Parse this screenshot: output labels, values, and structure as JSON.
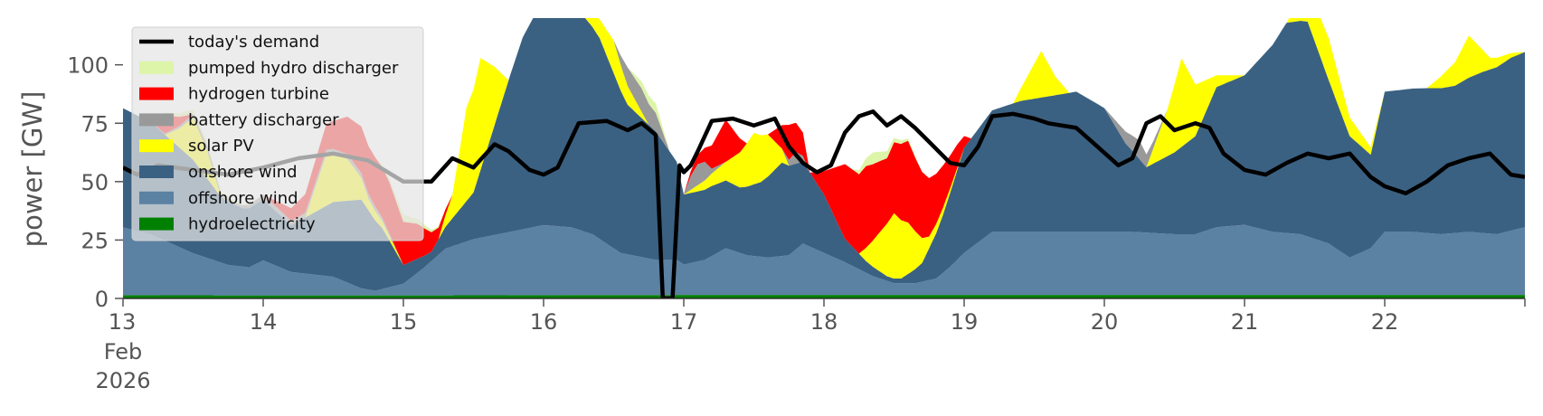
{
  "chart_data": {
    "type": "area",
    "title": "",
    "xlabel": "",
    "ylabel": "power [GW]",
    "xlim": [
      13,
      23
    ],
    "ylim": [
      0,
      120
    ],
    "yticks": [
      0,
      25,
      50,
      75,
      100
    ],
    "ytick_labels": [
      "0",
      "25",
      "50",
      "75",
      "100"
    ],
    "xticks": [
      13,
      14,
      15,
      16,
      17,
      18,
      19,
      20,
      21,
      22
    ],
    "xtick_labels": [
      "13",
      "14",
      "15",
      "16",
      "17",
      "18",
      "19",
      "20",
      "21",
      "22"
    ],
    "xtick_sublabels": [
      "Feb",
      "2026"
    ],
    "grid": false,
    "legend_position": "top-left",
    "stack_order": [
      "hydroelectricity",
      "offshore_wind",
      "onshore_wind",
      "solar_pv",
      "battery_discharger",
      "hydrogen_turbine",
      "pumped_hydro"
    ],
    "series": [
      {
        "key": "demand",
        "name": "today's demand",
        "kind": "line",
        "color": "#000000",
        "x": [
          13.0,
          13.1,
          13.25,
          13.5,
          13.75,
          14.0,
          14.25,
          14.5,
          14.75,
          15.0,
          15.2,
          15.35,
          15.5,
          15.65,
          15.75,
          15.9,
          16.0,
          16.1,
          16.25,
          16.45,
          16.6,
          16.7,
          16.8,
          16.85,
          16.88,
          16.92,
          16.97,
          17.0,
          17.05,
          17.1,
          17.2,
          17.35,
          17.5,
          17.65,
          17.75,
          17.85,
          17.95,
          18.05,
          18.15,
          18.25,
          18.35,
          18.45,
          18.55,
          18.65,
          18.75,
          18.9,
          19.0,
          19.1,
          19.2,
          19.35,
          19.5,
          19.6,
          19.8,
          19.95,
          20.1,
          20.2,
          20.3,
          20.4,
          20.5,
          20.65,
          20.75,
          20.85,
          21.0,
          21.15,
          21.3,
          21.45,
          21.6,
          21.75,
          21.9,
          22.0,
          22.15,
          22.3,
          22.45,
          22.6,
          22.75,
          22.9,
          23.0
        ],
        "values": [
          56,
          53,
          57,
          55,
          53,
          56,
          60,
          62,
          59,
          50,
          50,
          60,
          56,
          66,
          63,
          55,
          53,
          56,
          75,
          76,
          72,
          75,
          70,
          0,
          0,
          0,
          57,
          54,
          57,
          63,
          76,
          77,
          74,
          77,
          65,
          58,
          54,
          57,
          71,
          78,
          80,
          74,
          78,
          73,
          67,
          58,
          57,
          65,
          78,
          79,
          77,
          75,
          73,
          65,
          57,
          60,
          75,
          78,
          72,
          75,
          73,
          62,
          55,
          53,
          58,
          62,
          60,
          62,
          52,
          48,
          45,
          50,
          57,
          60,
          62,
          53,
          52
        ]
      },
      {
        "key": "pumped_hydro",
        "name": "pumped hydro discharger",
        "kind": "area",
        "color": "#ddf5a8",
        "x": [
          13.0,
          13.2,
          13.3,
          13.5,
          13.7,
          14.0,
          14.5,
          14.8,
          15.0,
          15.3,
          16.0,
          16.5,
          16.6,
          16.7,
          16.8,
          16.9,
          17.0,
          18.0,
          18.2,
          18.35,
          18.5,
          18.7,
          19.0,
          23.0
        ],
        "values": [
          0,
          0,
          1,
          2,
          1,
          0,
          0,
          0,
          3,
          0,
          0,
          0,
          0,
          3,
          4,
          0,
          0,
          0,
          0,
          5,
          2,
          0,
          0,
          0
        ]
      },
      {
        "key": "hydrogen_turbine",
        "name": "hydrogen turbine",
        "kind": "area",
        "color": "#ff0000",
        "x": [
          13.0,
          13.2,
          13.3,
          13.5,
          13.7,
          14.0,
          14.3,
          14.5,
          14.7,
          14.9,
          15.1,
          15.25,
          15.35,
          15.5,
          16.0,
          17.0,
          17.15,
          17.3,
          17.45,
          17.6,
          17.75,
          17.85,
          17.9,
          18.0,
          18.15,
          18.3,
          18.45,
          18.6,
          18.75,
          18.85,
          18.95,
          19.05,
          19.2,
          23.0
        ],
        "values": [
          0,
          0,
          8,
          0,
          0,
          0,
          8,
          12,
          20,
          22,
          15,
          5,
          0,
          0,
          0,
          0,
          6,
          18,
          0,
          0,
          15,
          10,
          0,
          10,
          32,
          35,
          28,
          35,
          25,
          18,
          10,
          0,
          0,
          0
        ]
      },
      {
        "key": "battery_discharger",
        "name": "battery discharger",
        "kind": "area",
        "color": "#999999",
        "x": [
          13.0,
          13.2,
          13.4,
          13.6,
          13.8,
          14.0,
          14.3,
          14.5,
          14.8,
          15.0,
          15.5,
          16.0,
          16.5,
          16.6,
          16.7,
          16.8,
          16.9,
          17.0,
          17.05,
          17.1,
          17.15,
          17.2,
          17.3,
          17.5,
          17.7,
          17.8,
          17.9,
          18.0,
          19.0,
          20.0,
          20.15,
          20.25,
          20.35,
          20.45,
          21.0,
          23.0
        ],
        "values": [
          0,
          0,
          1,
          2,
          1,
          2,
          2,
          2,
          2,
          0,
          0,
          0,
          0,
          8,
          10,
          8,
          0,
          0,
          6,
          9,
          8,
          2,
          0,
          0,
          0,
          5,
          0,
          0,
          0,
          0,
          5,
          8,
          3,
          0,
          0,
          0
        ]
      },
      {
        "key": "solar_pv",
        "name": "solar PV",
        "kind": "area",
        "color": "#ffff00",
        "x": [
          13.0,
          13.3,
          13.4,
          13.5,
          13.6,
          13.7,
          14.0,
          14.3,
          14.45,
          14.6,
          14.75,
          15.0,
          15.25,
          15.35,
          15.45,
          15.55,
          15.65,
          15.75,
          16.0,
          16.2,
          16.4,
          16.5,
          16.6,
          16.75,
          17.0,
          17.3,
          17.4,
          17.5,
          17.6,
          17.75,
          18.0,
          18.25,
          18.4,
          18.5,
          18.6,
          18.75,
          19.0,
          19.35,
          19.45,
          19.55,
          19.65,
          19.75,
          20.0,
          20.3,
          20.45,
          20.55,
          20.65,
          20.8,
          21.0,
          21.3,
          21.45,
          21.6,
          21.75,
          22.0,
          22.3,
          22.5,
          22.6,
          22.75,
          23.0
        ],
        "values": [
          0,
          0,
          8,
          18,
          12,
          0,
          0,
          0,
          22,
          18,
          5,
          0,
          0,
          10,
          40,
          48,
          25,
          0,
          0,
          0,
          8,
          14,
          8,
          0,
          0,
          8,
          15,
          22,
          18,
          0,
          0,
          0,
          17,
          28,
          22,
          5,
          0,
          0,
          10,
          20,
          8,
          0,
          0,
          0,
          20,
          38,
          22,
          5,
          0,
          0,
          15,
          18,
          8,
          0,
          0,
          10,
          18,
          5,
          0
        ]
      },
      {
        "key": "onshore_wind",
        "name": "onshore wind",
        "kind": "area",
        "color": "#3b6182",
        "x": [
          13.0,
          13.2,
          13.5,
          13.7,
          13.85,
          14.0,
          14.2,
          14.5,
          14.7,
          14.85,
          15.0,
          15.2,
          15.5,
          15.75,
          15.85,
          15.95,
          16.1,
          16.25,
          16.4,
          16.6,
          16.8,
          16.95,
          17.0,
          17.2,
          17.4,
          17.55,
          17.7,
          17.85,
          18.0,
          18.15,
          18.3,
          18.45,
          18.55,
          18.7,
          18.85,
          19.0,
          19.2,
          19.4,
          19.6,
          19.8,
          20.0,
          20.15,
          20.3,
          20.5,
          20.65,
          20.8,
          21.0,
          21.2,
          21.3,
          21.45,
          21.6,
          21.75,
          21.9,
          22.0,
          22.3,
          22.5,
          22.7,
          22.9,
          23.0
        ],
        "values": [
          51,
          48,
          40,
          28,
          25,
          26,
          20,
          32,
          38,
          26,
          8,
          4,
          20,
          65,
          82,
          92,
          98,
          94,
          86,
          64,
          55,
          42,
          30,
          30,
          28,
          32,
          40,
          35,
          25,
          10,
          5,
          2,
          2,
          8,
          25,
          45,
          52,
          56,
          58,
          60,
          53,
          38,
          28,
          35,
          42,
          60,
          64,
          80,
          90,
          92,
          70,
          52,
          40,
          60,
          62,
          63,
          69,
          74,
          75
        ]
      },
      {
        "key": "offshore_wind",
        "name": "offshore wind",
        "kind": "area",
        "color": "#5b81a3",
        "x": [
          13.0,
          13.2,
          13.5,
          13.75,
          13.9,
          14.0,
          14.2,
          14.5,
          14.7,
          14.8,
          15.0,
          15.15,
          15.3,
          15.5,
          15.75,
          16.0,
          16.2,
          16.35,
          16.55,
          16.8,
          16.95,
          17.0,
          17.15,
          17.3,
          17.45,
          17.6,
          17.75,
          17.85,
          18.0,
          18.15,
          18.35,
          18.5,
          18.65,
          18.8,
          18.9,
          19.0,
          19.2,
          19.5,
          19.8,
          20.0,
          20.2,
          20.5,
          20.65,
          20.8,
          21.0,
          21.2,
          21.4,
          21.6,
          21.75,
          21.9,
          22.0,
          22.2,
          22.4,
          22.6,
          22.8,
          23.0
        ],
        "values": [
          29,
          26,
          18,
          13,
          12,
          15,
          10,
          8,
          3,
          2,
          5,
          12,
          20,
          24,
          27,
          30,
          29,
          26,
          18,
          15,
          15,
          13,
          15,
          20,
          17,
          16,
          17,
          22,
          18,
          14,
          8,
          5,
          5,
          7,
          12,
          18,
          27,
          27,
          27,
          27,
          27,
          26,
          26,
          29,
          30,
          27,
          26,
          22,
          16,
          20,
          27,
          27,
          26,
          27,
          26,
          29
        ]
      },
      {
        "key": "hydroelectricity",
        "name": "hydroelectricity",
        "kind": "area",
        "color": "#008000",
        "x": [
          13.0,
          14.0,
          15.0,
          16.0,
          17.0,
          18.0,
          19.0,
          20.0,
          21.0,
          22.0,
          23.0
        ],
        "values": [
          1.4,
          1.3,
          1.3,
          1.4,
          1.5,
          1.5,
          1.5,
          1.5,
          1.5,
          1.5,
          1.5
        ]
      }
    ]
  }
}
